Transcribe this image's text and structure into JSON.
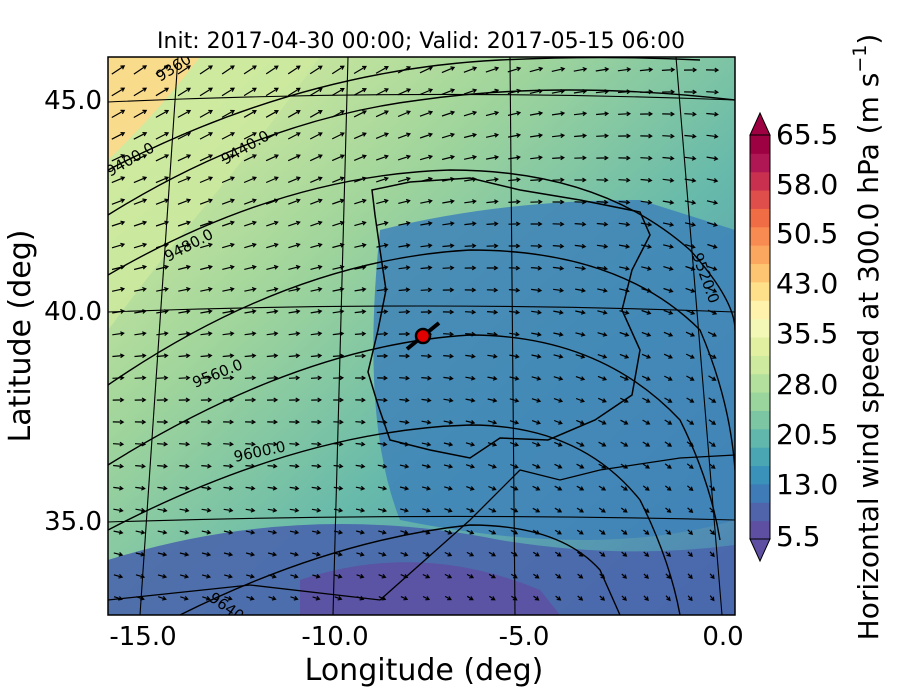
{
  "title": "Init: 2017-04-30 00:00; Valid: 2017-05-15 06:00",
  "map": {
    "xlabel": "Longitude (deg)",
    "ylabel": "Latitude (deg)",
    "lon_range": [
      -16.0,
      0.2
    ],
    "lat_range": [
      32.7,
      46.0
    ],
    "x_ticks": [
      "-15.0",
      "-10.0",
      "-5.0",
      "0.0"
    ],
    "y_ticks": [
      "35.0",
      "40.0",
      "45.0"
    ],
    "contour_labels": [
      "9360",
      "9400.0",
      "9440.0",
      "9480.0",
      "9520.0",
      "9560.0",
      "9600.0",
      "9640"
    ],
    "marker": {
      "lon": -7.6,
      "lat": 39.3,
      "color": "#e00000"
    }
  },
  "colorbar": {
    "label": "Horizontal wind speed at 300.0 hPa (m s$^{-1}$)",
    "label_main": "Horizontal wind speed at 300.0 hPa (m s",
    "label_sup": "−1",
    "label_tail": ")",
    "tick_labels": [
      "65.5",
      "58.0",
      "50.5",
      "43.0",
      "35.5",
      "28.0",
      "20.5",
      "13.0",
      "5.5"
    ],
    "colors": [
      "#5e4fa2",
      "#4f64ab",
      "#3f7bb6",
      "#3a92bb",
      "#4aa6b3",
      "#62b7ad",
      "#7cc6a4",
      "#99d59c",
      "#b4e09e",
      "#cdea9f",
      "#e2f0a2",
      "#f3f8b6",
      "#fef2ad",
      "#fee08b",
      "#fdc572",
      "#fca75f",
      "#f88b52",
      "#ef6c45",
      "#df4e4b",
      "#c9304f",
      "#ae1753",
      "#9e0142"
    ]
  }
}
